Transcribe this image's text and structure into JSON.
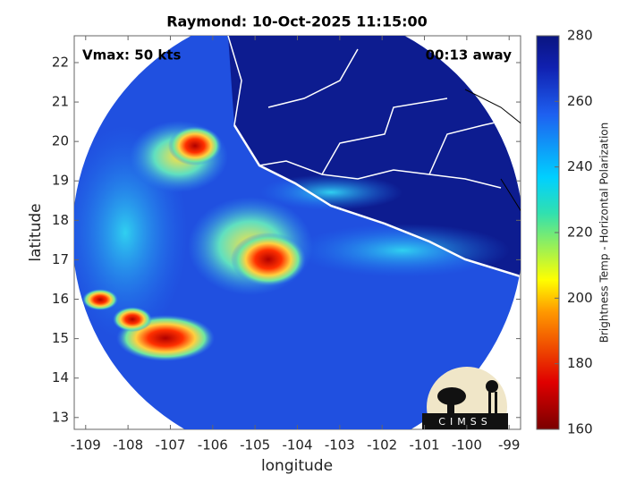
{
  "chart_data": {
    "type": "map",
    "title": "Raymond: 10-Oct-2025 11:15:00",
    "x_label": "longitude",
    "y_label": "latitude",
    "annotations": [
      "Vmax: 50 kts",
      "00:13 away"
    ],
    "logo_text": "CIMSS",
    "xlim": [
      -109.27,
      -98.73
    ],
    "xticks": [
      -109,
      -108,
      -107,
      -106,
      -105,
      -104,
      -103,
      -102,
      -101,
      -100,
      -99
    ],
    "ylim": [
      12.7,
      22.68
    ],
    "yticks": [
      13,
      14,
      15,
      16,
      17,
      18,
      19,
      20,
      21,
      22
    ],
    "colorbar": {
      "label": "Brightness Temp - Horizontal Polarization",
      "lim": [
        160,
        280
      ],
      "ticks": [
        160,
        180,
        200,
        220,
        240,
        260,
        280
      ]
    }
  }
}
